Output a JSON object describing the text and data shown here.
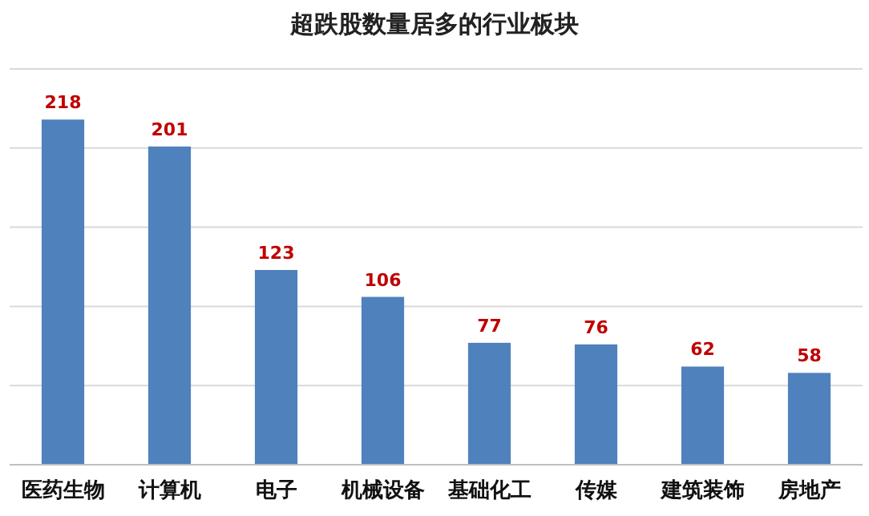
{
  "chart_data": {
    "type": "bar",
    "title": "超跌股数量居多的行业板块",
    "categories": [
      "医药生物",
      "计算机",
      "电子",
      "机械设备",
      "基础化工",
      "传媒",
      "建筑装饰",
      "房地产"
    ],
    "values": [
      218,
      201,
      123,
      106,
      77,
      76,
      62,
      58
    ],
    "color": "#4f81bd",
    "ylim": [
      0,
      250
    ],
    "yticks": [
      {
        "value": 0,
        "label": null
      },
      {
        "value": 50,
        "label": null
      },
      {
        "value": 100,
        "label": null
      },
      {
        "value": 150,
        "label": null
      },
      {
        "value": 200,
        "label": null
      },
      {
        "value": 250,
        "label": null
      }
    ],
    "grid": "y",
    "data_labels": true
  }
}
